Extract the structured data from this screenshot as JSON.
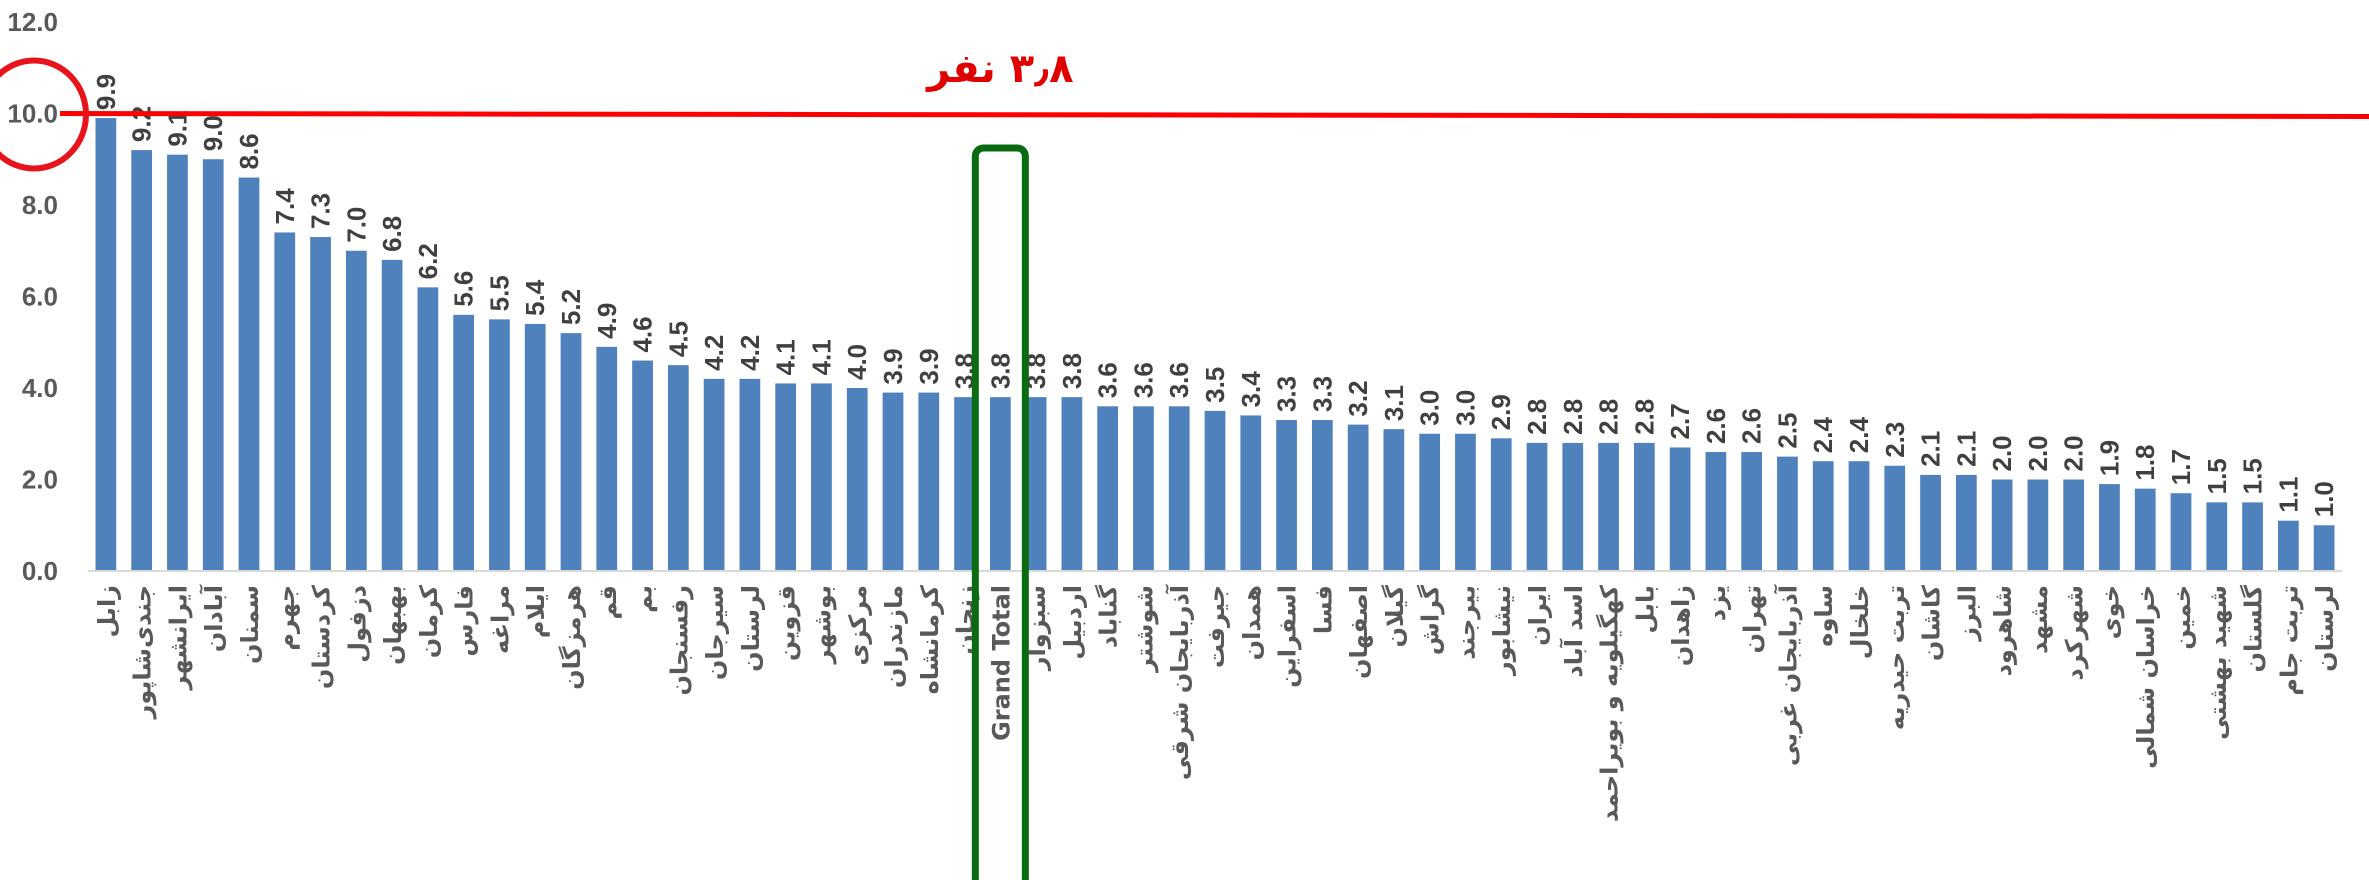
{
  "chart_data": {
    "type": "bar",
    "categories": [
      "زابل",
      "جندی‌شاپور",
      "ایرانشهر",
      "آبادان",
      "سمنان",
      "جهرم",
      "کردستان",
      "دزفول",
      "بهبهان",
      "کرمان",
      "فارس",
      "مراغه",
      "ایلام",
      "هرمزگان",
      "قم",
      "بم",
      "رفسنجان",
      "سیرجان",
      "لرستان",
      "قزوین",
      "بوشهر",
      "مرکزی",
      "مازندران",
      "کرمانشاه",
      "زنجان",
      "Grand Total",
      "سبزوار",
      "اردبیل",
      "گناباد",
      "شوشتر",
      "آذربایجان شرقی",
      "جیرفت",
      "همدان",
      "اسفراین",
      "فسا",
      "اصفهان",
      "گیلان",
      "گراش",
      "بیرجند",
      "نیشابور",
      "ایران",
      "اسد آباد",
      "کهگیلویه و بویراحمد",
      "بابل",
      "زاهدان",
      "یزد",
      "تهران",
      "آذربایجان غربی",
      "ساوه",
      "خلخال",
      "تربت حیدریه",
      "کاشان",
      "البرز",
      "شاهرود",
      "مشهد",
      "شهرکرد",
      "خوی",
      "خراسان شمالی",
      "خمین",
      "شهید بهشتی",
      "گلستان",
      "تربت جام",
      "لرستان"
    ],
    "values": [
      9.9,
      9.2,
      9.1,
      9.0,
      8.6,
      7.4,
      7.3,
      7.0,
      6.8,
      6.2,
      5.6,
      5.5,
      5.4,
      5.2,
      4.9,
      4.6,
      4.5,
      4.2,
      4.2,
      4.1,
      4.1,
      4.0,
      3.9,
      3.9,
      3.8,
      3.8,
      3.8,
      3.8,
      3.6,
      3.6,
      3.6,
      3.5,
      3.4,
      3.3,
      3.3,
      3.2,
      3.1,
      3.0,
      3.0,
      2.9,
      2.8,
      2.8,
      2.8,
      2.8,
      2.7,
      2.6,
      2.6,
      2.5,
      2.4,
      2.4,
      2.3,
      2.1,
      2.1,
      2.0,
      2.0,
      2.0,
      1.9,
      1.8,
      1.7,
      1.5,
      1.5,
      1.1,
      1.0
    ],
    "value_labels": [
      "9.9",
      "9.2",
      "9.1",
      "9.0",
      "8.6",
      "7.4",
      "7.3",
      "7.0",
      "6.8",
      "6.2",
      "5.6",
      "5.5",
      "5.4",
      "5.2",
      "4.9",
      "4.6",
      "4.5",
      "4.2",
      "4.2",
      "4.1",
      "4.1",
      "4.0",
      "3.9",
      "3.9",
      "3.8",
      "3.8",
      "3.8",
      "3.8",
      "3.6",
      "3.6",
      "3.6",
      "3.5",
      "3.4",
      "3.3",
      "3.3",
      "3.2",
      "3.1",
      "3.0",
      "3.0",
      "2.9",
      "2.8",
      "2.8",
      "2.8",
      "2.8",
      "2.7",
      "2.6",
      "2.6",
      "2.5",
      "2.4",
      "2.4",
      "2.3",
      "2.1",
      "2.1",
      "2.0",
      "2.0",
      "2.0",
      "1.9",
      "1.8",
      "1.7",
      "1.5",
      "1.5",
      "1.1",
      "1.0"
    ],
    "yticks": [
      "0.0",
      "2.0",
      "4.0",
      "6.0",
      "8.0",
      "10.0",
      "12.0"
    ],
    "ylim": [
      0,
      12
    ],
    "reference_line": 10.0,
    "highlight_category": "Grand Total",
    "annotation": "۳٫۸ نفر",
    "grid": false,
    "bar_color": "#4f81bd",
    "reference_color": "#ff0000",
    "circle_color": "#e8141c",
    "highlight_color": "#0b6b12"
  }
}
